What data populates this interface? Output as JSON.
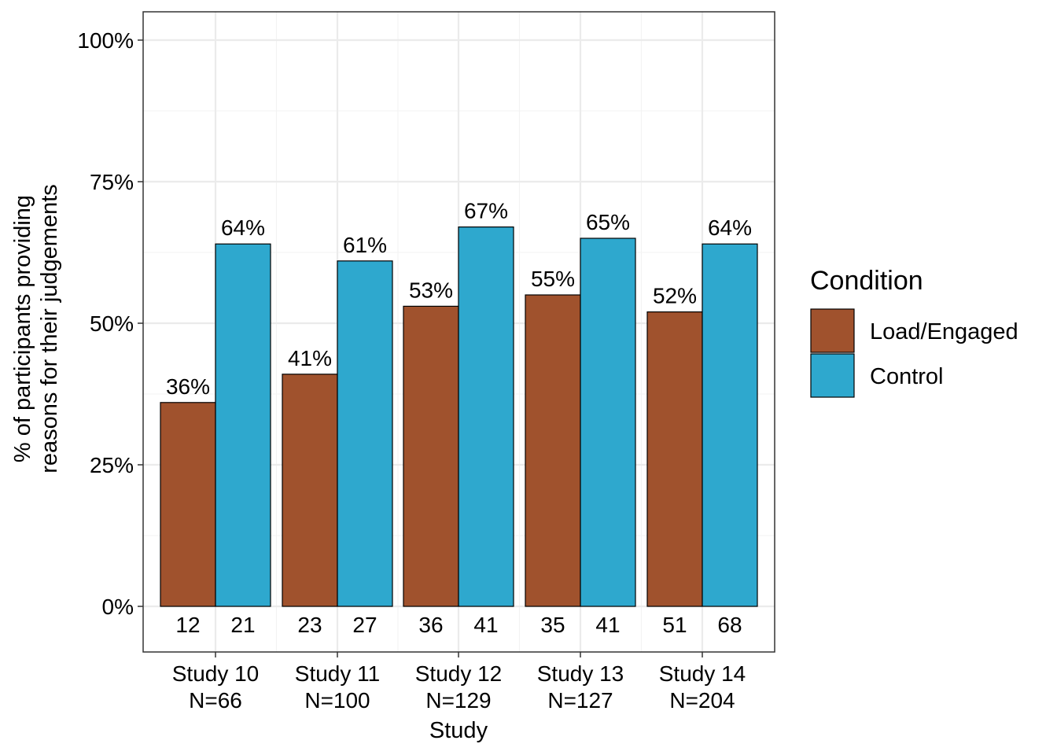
{
  "chart_data": {
    "type": "bar",
    "xlabel": "Study",
    "ylabel_lines": [
      "% of participants providing",
      "reasons for their judgements"
    ],
    "ylim": [
      0,
      100
    ],
    "yticks": [
      {
        "value": 0,
        "label": "0%"
      },
      {
        "value": 25,
        "label": "25%"
      },
      {
        "value": 50,
        "label": "50%"
      },
      {
        "value": 75,
        "label": "75%"
      },
      {
        "value": 100,
        "label": "100%"
      }
    ],
    "grid": true,
    "legend": {
      "title": "Condition",
      "placement": "right"
    },
    "categories": [
      {
        "line1": "Study 10",
        "line2": "N=66"
      },
      {
        "line1": "Study 11",
        "line2": "N=100"
      },
      {
        "line1": "Study 12",
        "line2": "N=129"
      },
      {
        "line1": "Study 13",
        "line2": "N=127"
      },
      {
        "line1": "Study 14",
        "line2": "N=204"
      }
    ],
    "series": [
      {
        "name": "Load/Engaged",
        "color": "#A0522D",
        "values": [
          36,
          41,
          53,
          55,
          52
        ],
        "labels": [
          "36%",
          "41%",
          "53%",
          "55%",
          "52%"
        ],
        "counts": [
          "12",
          "23",
          "36",
          "35",
          "51"
        ]
      },
      {
        "name": "Control",
        "color": "#2EA8CE",
        "values": [
          64,
          61,
          67,
          65,
          64
        ],
        "labels": [
          "64%",
          "61%",
          "67%",
          "65%",
          "64%"
        ],
        "counts": [
          "21",
          "27",
          "41",
          "41",
          "68"
        ]
      }
    ]
  }
}
